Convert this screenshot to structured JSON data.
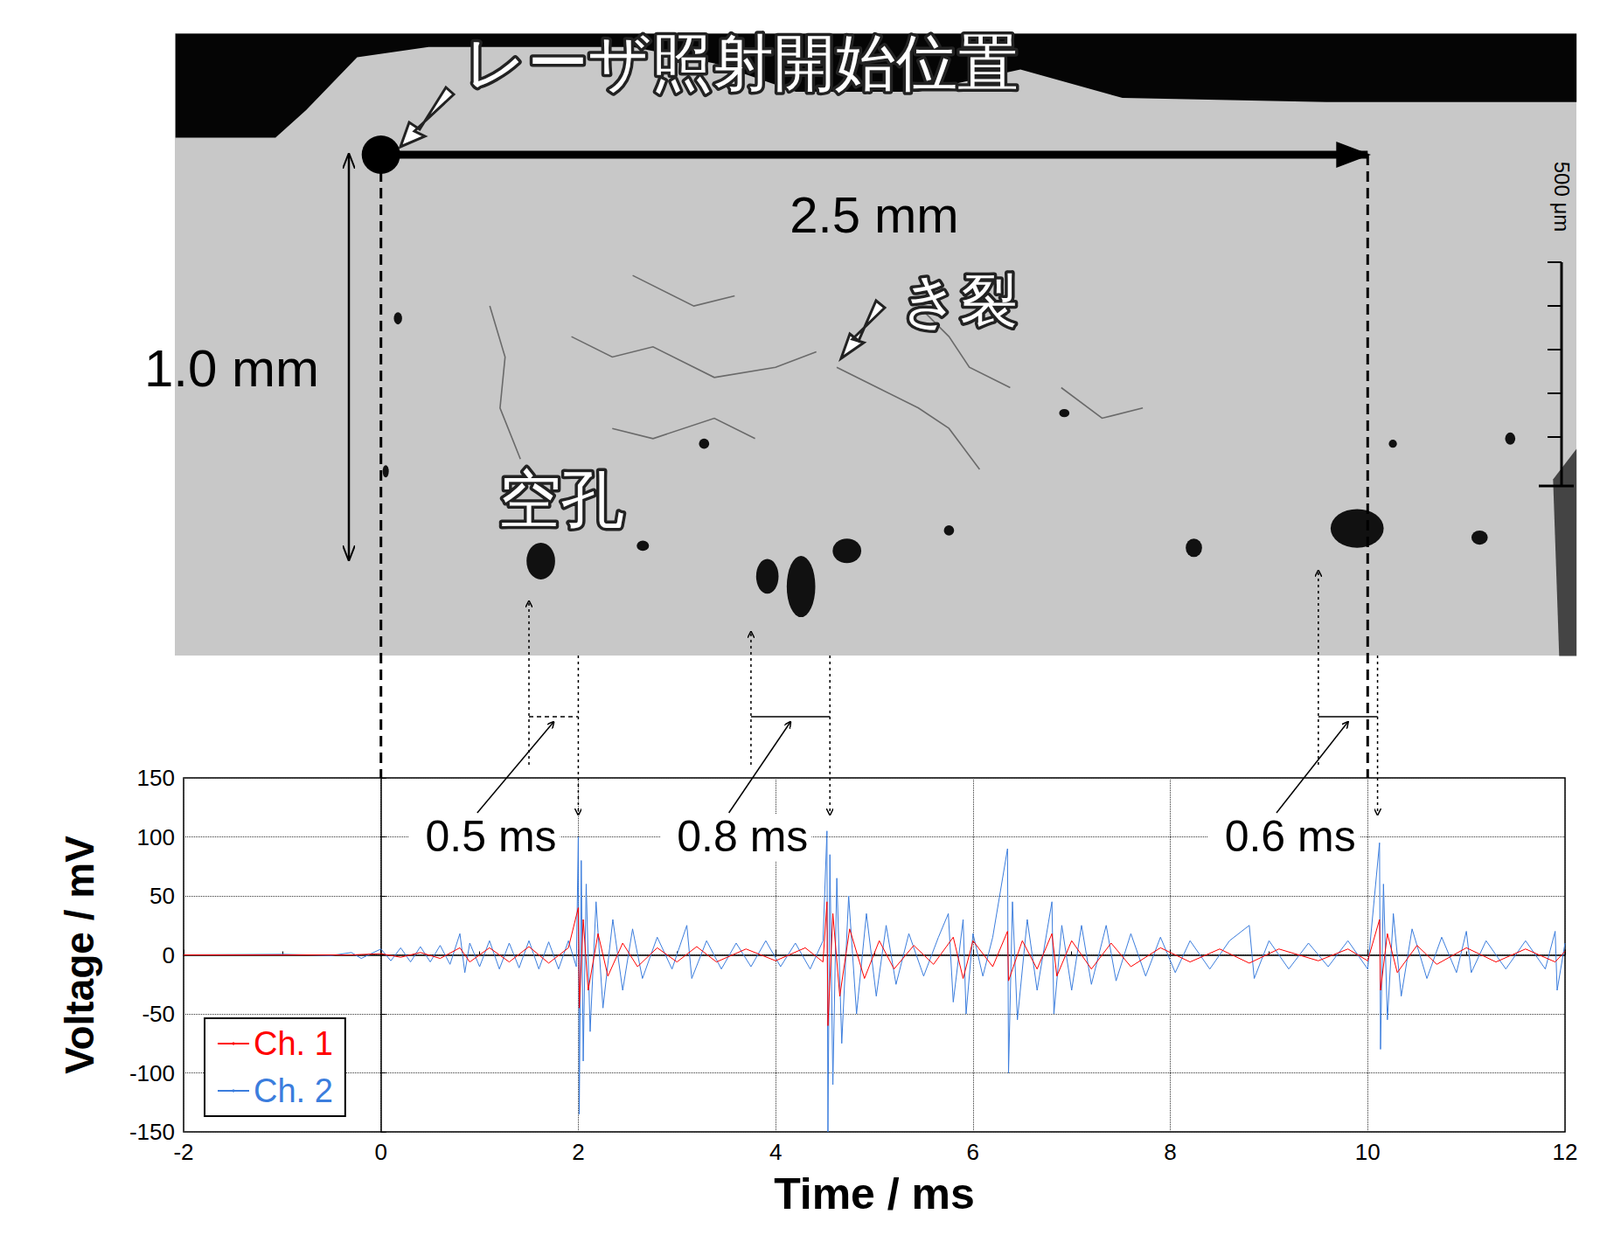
{
  "micrograph": {
    "laser_start_label": "レーザ照射開始位置",
    "width_label": "2.5 mm",
    "depth_label": "1.0 mm",
    "crack_label": "き裂",
    "pore_label": "空孔",
    "scale_label": "500 μm",
    "scan_start": 0,
    "scan_end": 10
  },
  "intervals": [
    {
      "label": "0.5 ms",
      "from": 1.5,
      "to": 2.0
    },
    {
      "label": "0.8 ms",
      "from": 3.75,
      "to": 4.55
    },
    {
      "label": "0.6 ms",
      "from": 9.5,
      "to": 10.1
    }
  ],
  "chart_data": {
    "type": "line",
    "x_label": "Time / ms",
    "y_label": "Voltage / mV",
    "xlim": [
      -2,
      12
    ],
    "xticks": [
      -2,
      0,
      2,
      4,
      6,
      8,
      10,
      12
    ],
    "ylim": [
      -150,
      150
    ],
    "yticks": [
      -150,
      -100,
      -50,
      0,
      50,
      100,
      150
    ],
    "grid": true,
    "legend": "lower left",
    "series": [
      {
        "name": "Ch. 1",
        "color": "#ff0000",
        "x": [
          -2,
          -0.3,
          0,
          0.2,
          0.4,
          0.6,
          0.8,
          0.9,
          1.1,
          1.3,
          1.5,
          1.7,
          1.9,
          2.0,
          2.01,
          2.05,
          2.1,
          2.2,
          2.3,
          2.45,
          2.6,
          2.8,
          3.0,
          3.2,
          3.4,
          3.7,
          4.0,
          4.3,
          4.48,
          4.52,
          4.53,
          4.58,
          4.65,
          4.75,
          4.9,
          5.05,
          5.2,
          5.4,
          5.6,
          5.8,
          5.9,
          6.0,
          6.2,
          6.35,
          6.36,
          6.5,
          6.65,
          6.8,
          6.85,
          7.0,
          7.2,
          7.4,
          7.6,
          7.9,
          8.2,
          8.5,
          8.8,
          9.1,
          9.5,
          9.8,
          10.0,
          10.12,
          10.13,
          10.2,
          10.3,
          10.5,
          10.7,
          11.0,
          11.3,
          11.6,
          11.9,
          12
        ],
        "values": [
          0,
          0,
          1,
          -2,
          2,
          -3,
          6,
          -6,
          6,
          -6,
          7,
          -7,
          6,
          40,
          -45,
          30,
          -30,
          18,
          -18,
          10,
          -10,
          6,
          -6,
          7,
          -6,
          5,
          -5,
          6,
          -6,
          45,
          -60,
          35,
          -35,
          22,
          -20,
          12,
          -12,
          8,
          -8,
          15,
          -20,
          12,
          -10,
          20,
          -22,
          12,
          -12,
          18,
          -18,
          12,
          -12,
          10,
          -10,
          6,
          -6,
          5,
          -7,
          5,
          -5,
          5,
          -5,
          30,
          -30,
          18,
          -15,
          8,
          -8,
          6,
          -6,
          5,
          -6,
          3
        ]
      },
      {
        "name": "Ch. 2",
        "color": "#3b7ddd",
        "x": [
          -2,
          -1,
          -0.5,
          -0.3,
          -0.2,
          0,
          0.1,
          0.2,
          0.3,
          0.4,
          0.5,
          0.6,
          0.7,
          0.8,
          0.85,
          0.9,
          1,
          1.1,
          1.2,
          1.3,
          1.4,
          1.5,
          1.6,
          1.7,
          1.8,
          1.9,
          1.98,
          2.0,
          2.01,
          2.03,
          2.05,
          2.08,
          2.12,
          2.18,
          2.25,
          2.35,
          2.45,
          2.55,
          2.65,
          2.8,
          2.95,
          3.1,
          3.15,
          3.3,
          3.45,
          3.6,
          3.75,
          3.9,
          4.05,
          4.2,
          4.35,
          4.48,
          4.52,
          4.53,
          4.55,
          4.58,
          4.62,
          4.67,
          4.74,
          4.82,
          4.92,
          5.02,
          5.12,
          5.22,
          5.35,
          5.5,
          5.65,
          5.75,
          5.8,
          5.9,
          5.93,
          6.0,
          6.1,
          6.2,
          6.35,
          6.36,
          6.4,
          6.45,
          6.55,
          6.65,
          6.8,
          6.82,
          6.9,
          7.0,
          7.1,
          7.2,
          7.35,
          7.45,
          7.6,
          7.75,
          7.9,
          8.05,
          8.2,
          8.4,
          8.6,
          8.8,
          8.85,
          9.0,
          9.2,
          9.4,
          9.6,
          9.8,
          10.0,
          10.12,
          10.13,
          10.16,
          10.2,
          10.26,
          10.34,
          10.45,
          10.6,
          10.75,
          10.9,
          11.0,
          11.05,
          11.2,
          11.4,
          11.6,
          11.8,
          11.9,
          11.92,
          12
        ],
        "values": [
          0,
          0.5,
          -0.5,
          2,
          -3,
          5,
          -5,
          6,
          -6,
          7,
          -6,
          8,
          -8,
          18,
          -15,
          10,
          -10,
          12,
          -12,
          10,
          -11,
          12,
          -12,
          11,
          -12,
          12,
          -10,
          100,
          -135,
          80,
          -90,
          60,
          -65,
          45,
          -45,
          30,
          -30,
          22,
          -20,
          15,
          -12,
          25,
          -20,
          12,
          -12,
          10,
          -10,
          12,
          -10,
          10,
          -12,
          12,
          105,
          -150,
          85,
          -110,
          65,
          -75,
          50,
          -50,
          35,
          -35,
          25,
          -25,
          18,
          -18,
          15,
          35,
          -40,
          30,
          -50,
          18,
          -18,
          15,
          90,
          -100,
          45,
          -55,
          30,
          -30,
          45,
          -50,
          25,
          -30,
          25,
          -25,
          25,
          -22,
          18,
          -18,
          15,
          -15,
          12,
          -12,
          12,
          25,
          -20,
          12,
          -12,
          10,
          -10,
          12,
          -12,
          95,
          -80,
          60,
          -55,
          35,
          -35,
          22,
          -20,
          15,
          -15,
          20,
          -15,
          12,
          -12,
          12,
          -12,
          20,
          -30,
          10
        ]
      }
    ]
  }
}
